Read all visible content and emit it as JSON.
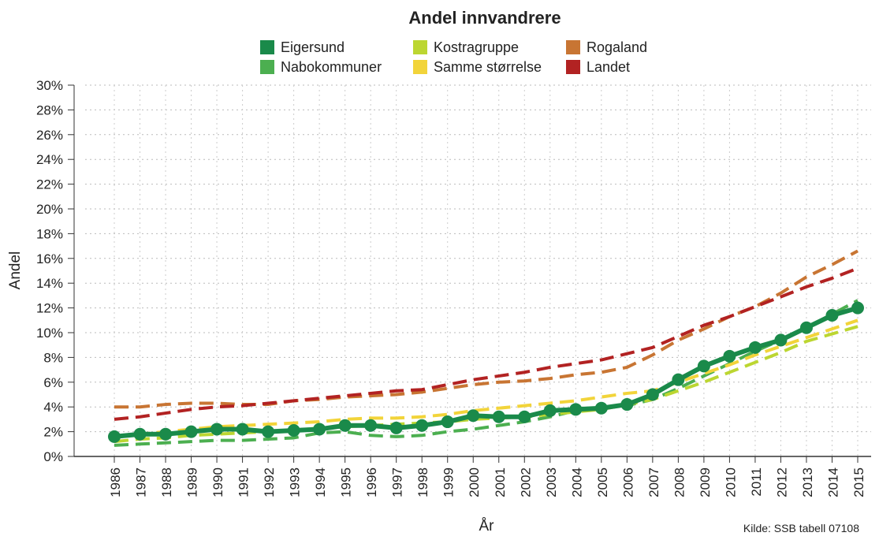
{
  "chart_data": {
    "type": "line",
    "title": "Andel innvandrere",
    "x_label": "År",
    "y_label": "Andel",
    "source": "Kilde: SSB tabell 07108",
    "legend_position": "top",
    "grid": true,
    "categories": [
      "1986",
      "1987",
      "1988",
      "1989",
      "1990",
      "1991",
      "1992",
      "1993",
      "1994",
      "1995",
      "1996",
      "1997",
      "1998",
      "1999",
      "2000",
      "2001",
      "2002",
      "2003",
      "2004",
      "2005",
      "2006",
      "2007",
      "2008",
      "2009",
      "2010",
      "2011",
      "2012",
      "2013",
      "2014",
      "2015"
    ],
    "ylim": [
      0,
      30
    ],
    "yticks": [
      {
        "value": 0,
        "label": "0%"
      },
      {
        "value": 2,
        "label": "2%"
      },
      {
        "value": 4,
        "label": "4%"
      },
      {
        "value": 6,
        "label": "6%"
      },
      {
        "value": 8,
        "label": "8%"
      },
      {
        "value": 10,
        "label": "10%"
      },
      {
        "value": 12,
        "label": "12%"
      },
      {
        "value": 14,
        "label": "14%"
      },
      {
        "value": 16,
        "label": "16%"
      },
      {
        "value": 18,
        "label": "18%"
      },
      {
        "value": 20,
        "label": "20%"
      },
      {
        "value": 22,
        "label": "22%"
      },
      {
        "value": 24,
        "label": "24%"
      },
      {
        "value": 26,
        "label": "26%"
      },
      {
        "value": 28,
        "label": "28%"
      },
      {
        "value": 30,
        "label": "30%"
      }
    ],
    "series": [
      {
        "name": "Eigersund",
        "color": "#1a8a4a",
        "style": "solid",
        "values": [
          1.6,
          1.8,
          1.8,
          2.0,
          2.2,
          2.2,
          2.0,
          2.1,
          2.2,
          2.5,
          2.5,
          2.3,
          2.5,
          2.8,
          3.3,
          3.2,
          3.2,
          3.7,
          3.8,
          3.9,
          4.2,
          5.0,
          6.2,
          7.3,
          8.1,
          8.8,
          9.4,
          10.4,
          11.4,
          12.0
        ]
      },
      {
        "name": "Nabokommuner",
        "color": "#4caf50",
        "style": "dashed",
        "values": [
          0.9,
          1.0,
          1.1,
          1.2,
          1.3,
          1.3,
          1.4,
          1.5,
          1.9,
          2.0,
          1.7,
          1.6,
          1.7,
          2.0,
          2.2,
          2.5,
          2.8,
          3.2,
          3.7,
          3.9,
          4.1,
          4.6,
          5.5,
          6.5,
          7.5,
          8.5,
          9.4,
          10.4,
          11.5,
          12.6
        ]
      },
      {
        "name": "Kostragruppe",
        "color": "#bcd631",
        "style": "dashed",
        "values": [
          1.2,
          1.4,
          1.5,
          1.7,
          1.8,
          1.9,
          2.0,
          2.1,
          2.3,
          2.4,
          2.5,
          2.6,
          2.7,
          2.8,
          3.0,
          3.1,
          3.2,
          3.4,
          3.6,
          3.8,
          4.2,
          4.6,
          5.3,
          6.0,
          6.8,
          7.6,
          8.4,
          9.3,
          9.9,
          10.5
        ]
      },
      {
        "name": "Samme størrelse",
        "color": "#f2d43a",
        "style": "dashed",
        "values": [
          1.6,
          1.8,
          2.0,
          2.2,
          2.4,
          2.5,
          2.6,
          2.7,
          2.8,
          3.0,
          3.1,
          3.1,
          3.2,
          3.4,
          3.7,
          3.9,
          4.1,
          4.3,
          4.5,
          4.8,
          5.1,
          5.3,
          6.0,
          6.7,
          7.4,
          8.2,
          8.9,
          9.6,
          10.3,
          11.0
        ]
      },
      {
        "name": "Rogaland",
        "color": "#c87533",
        "style": "dashed",
        "values": [
          4.0,
          4.0,
          4.2,
          4.3,
          4.3,
          4.2,
          4.2,
          4.5,
          4.6,
          4.8,
          4.9,
          5.0,
          5.2,
          5.5,
          5.8,
          6.0,
          6.1,
          6.3,
          6.6,
          6.8,
          7.2,
          8.2,
          9.4,
          10.3,
          11.3,
          12.1,
          13.2,
          14.5,
          15.5,
          16.6
        ]
      },
      {
        "name": "Landet",
        "color": "#b22222",
        "style": "dashed",
        "values": [
          3.0,
          3.2,
          3.5,
          3.8,
          4.0,
          4.1,
          4.3,
          4.5,
          4.7,
          4.9,
          5.1,
          5.3,
          5.4,
          5.8,
          6.2,
          6.5,
          6.8,
          7.2,
          7.5,
          7.8,
          8.3,
          8.8,
          9.7,
          10.6,
          11.3,
          12.1,
          12.9,
          13.7,
          14.4,
          15.2
        ]
      }
    ]
  }
}
